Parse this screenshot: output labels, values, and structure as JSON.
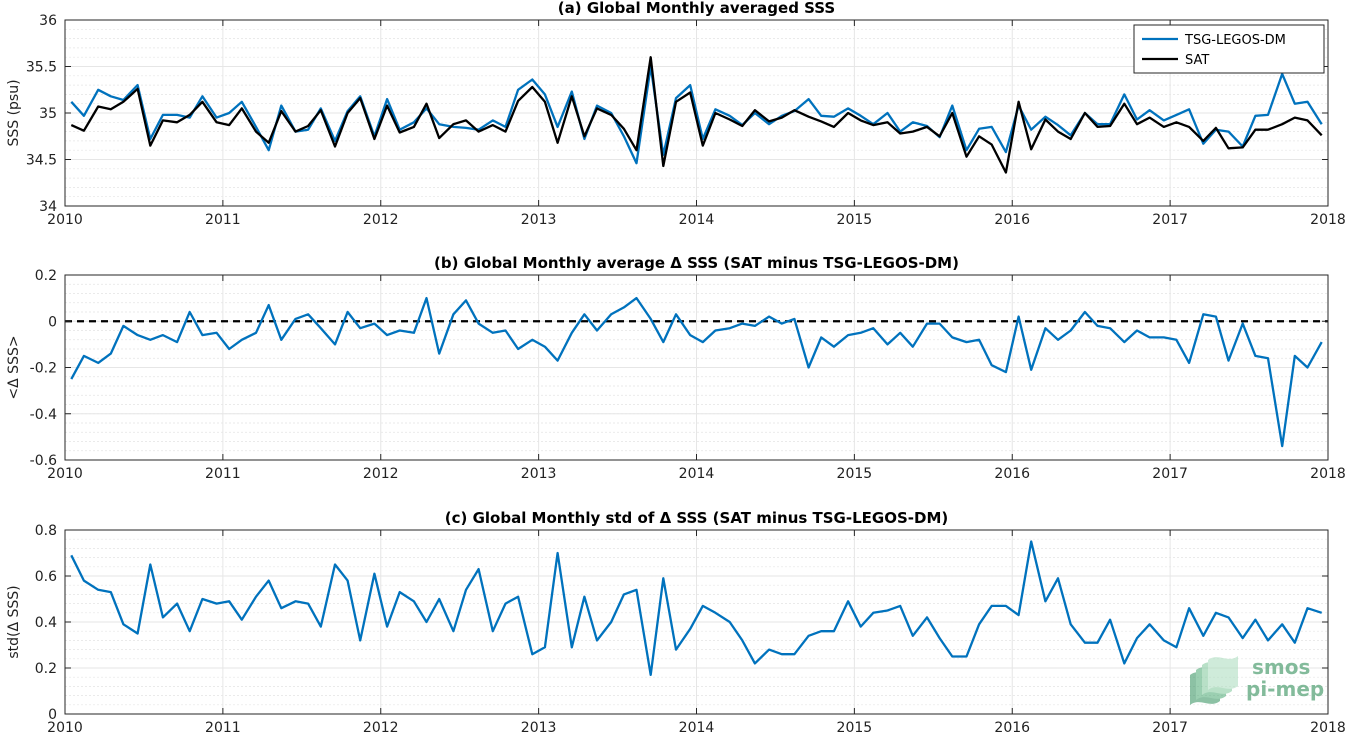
{
  "colors": {
    "tsg": "#0072BD",
    "sat": "#000000",
    "grid": "#e6e6e6",
    "axis": "#262626"
  },
  "logo": {
    "line1": "smos",
    "line2": "pi-mep",
    "icon": "smos-pimep-logo-icon"
  },
  "chart_data": [
    {
      "type": "line",
      "title": "(a) Global Monthly averaged SSS",
      "xlabel": "",
      "ylabel": "SSS (psu)",
      "xlim": [
        2010,
        2018
      ],
      "ylim": [
        34,
        36
      ],
      "xticks": [
        "2010",
        "2011",
        "2012",
        "2013",
        "2014",
        "2015",
        "2016",
        "2017",
        "2018"
      ],
      "yticks": [
        "34",
        "34.5",
        "35",
        "35.5",
        "36"
      ],
      "ytick_values": [
        34,
        34.5,
        35,
        35.5,
        36
      ],
      "grid": true,
      "legend": "top-right",
      "x": [
        2010.04,
        2010.12,
        2010.21,
        2010.29,
        2010.37,
        2010.46,
        2010.54,
        2010.62,
        2010.71,
        2010.79,
        2010.87,
        2010.96,
        2011.04,
        2011.12,
        2011.21,
        2011.29,
        2011.37,
        2011.46,
        2011.54,
        2011.62,
        2011.71,
        2011.79,
        2011.87,
        2011.96,
        2012.04,
        2012.12,
        2012.21,
        2012.29,
        2012.37,
        2012.46,
        2012.54,
        2012.62,
        2012.71,
        2012.79,
        2012.87,
        2012.96,
        2013.04,
        2013.12,
        2013.21,
        2013.29,
        2013.37,
        2013.46,
        2013.54,
        2013.62,
        2013.71,
        2013.79,
        2013.87,
        2013.96,
        2014.04,
        2014.12,
        2014.21,
        2014.29,
        2014.37,
        2014.46,
        2014.54,
        2014.62,
        2014.71,
        2014.79,
        2014.87,
        2014.96,
        2015.04,
        2015.12,
        2015.21,
        2015.29,
        2015.37,
        2015.46,
        2015.54,
        2015.62,
        2015.71,
        2015.79,
        2015.87,
        2015.96,
        2016.04,
        2016.12,
        2016.21,
        2016.29,
        2016.37,
        2016.46,
        2016.54,
        2016.62,
        2016.71,
        2016.79,
        2016.87,
        2016.96,
        2017.04,
        2017.12,
        2017.21,
        2017.29,
        2017.37,
        2017.46,
        2017.54,
        2017.62,
        2017.71,
        2017.79,
        2017.87,
        2017.96
      ],
      "series": [
        {
          "name": "TSG-LEGOS-DM",
          "color": "#0072BD",
          "values": [
            35.12,
            34.97,
            35.25,
            35.18,
            35.14,
            35.3,
            34.72,
            34.98,
            34.98,
            34.95,
            35.18,
            34.95,
            35.0,
            35.12,
            34.85,
            34.6,
            35.08,
            34.8,
            34.82,
            35.05,
            34.7,
            35.02,
            35.18,
            34.75,
            35.15,
            34.82,
            34.9,
            35.05,
            34.88,
            34.85,
            34.84,
            34.82,
            34.92,
            34.85,
            35.25,
            35.36,
            35.2,
            34.85,
            35.23,
            34.72,
            35.08,
            35.0,
            34.75,
            34.46,
            35.5,
            34.55,
            35.16,
            35.3,
            34.72,
            35.04,
            34.97,
            34.87,
            35.0,
            34.88,
            34.97,
            35.02,
            35.15,
            34.97,
            34.96,
            35.05,
            34.97,
            34.88,
            35.0,
            34.8,
            34.9,
            34.86,
            34.74,
            35.08,
            34.6,
            34.83,
            34.85,
            34.58,
            35.08,
            34.82,
            34.96,
            34.87,
            34.76,
            35.0,
            34.88,
            34.88,
            35.2,
            34.93,
            35.03,
            34.92,
            34.98,
            35.04,
            34.67,
            34.82,
            34.8,
            34.64,
            34.97,
            34.98,
            35.42,
            35.1,
            35.12,
            34.88
          ]
        },
        {
          "name": "SAT",
          "color": "#000000",
          "values": [
            34.87,
            34.81,
            35.07,
            35.04,
            35.12,
            35.26,
            34.65,
            34.92,
            34.9,
            34.98,
            35.12,
            34.9,
            34.87,
            35.05,
            34.8,
            34.68,
            35.02,
            34.8,
            34.86,
            35.03,
            34.64,
            35.0,
            35.16,
            34.72,
            35.08,
            34.79,
            34.85,
            35.1,
            34.73,
            34.88,
            34.92,
            34.8,
            34.87,
            34.8,
            35.13,
            35.28,
            35.12,
            34.68,
            35.18,
            34.75,
            35.05,
            34.98,
            34.83,
            34.6,
            35.6,
            34.43,
            35.12,
            35.22,
            34.65,
            35.0,
            34.93,
            34.86,
            35.03,
            34.91,
            34.95,
            35.03,
            34.96,
            34.91,
            34.85,
            35.0,
            34.92,
            34.87,
            34.9,
            34.78,
            34.8,
            34.85,
            34.75,
            35.0,
            34.53,
            34.75,
            34.66,
            34.36,
            35.12,
            34.61,
            34.93,
            34.8,
            34.72,
            35.0,
            34.85,
            34.86,
            35.1,
            34.88,
            34.95,
            34.85,
            34.9,
            34.85,
            34.7,
            34.84,
            34.62,
            34.63,
            34.82,
            34.82,
            34.88,
            34.95,
            34.92,
            34.76
          ]
        }
      ]
    },
    {
      "type": "line",
      "title": "(b) Global Monthly average Δ SSS (SAT minus TSG-LEGOS-DM)",
      "xlabel": "",
      "ylabel": "<Δ SSS>",
      "xlim": [
        2010,
        2018
      ],
      "ylim": [
        -0.6,
        0.2
      ],
      "xticks": [
        "2010",
        "2011",
        "2012",
        "2013",
        "2014",
        "2015",
        "2016",
        "2017",
        "2018"
      ],
      "yticks": [
        "-0.6",
        "-0.4",
        "-0.2",
        "0",
        "0.2"
      ],
      "ytick_values": [
        -0.6,
        -0.4,
        -0.2,
        0,
        0.2
      ],
      "grid": true,
      "reference_line": 0,
      "x": [
        2010.04,
        2010.12,
        2010.21,
        2010.29,
        2010.37,
        2010.46,
        2010.54,
        2010.62,
        2010.71,
        2010.79,
        2010.87,
        2010.96,
        2011.04,
        2011.12,
        2011.21,
        2011.29,
        2011.37,
        2011.46,
        2011.54,
        2011.62,
        2011.71,
        2011.79,
        2011.87,
        2011.96,
        2012.04,
        2012.12,
        2012.21,
        2012.29,
        2012.37,
        2012.46,
        2012.54,
        2012.62,
        2012.71,
        2012.79,
        2012.87,
        2012.96,
        2013.04,
        2013.12,
        2013.21,
        2013.29,
        2013.37,
        2013.46,
        2013.54,
        2013.62,
        2013.71,
        2013.79,
        2013.87,
        2013.96,
        2014.04,
        2014.12,
        2014.21,
        2014.29,
        2014.37,
        2014.46,
        2014.54,
        2014.62,
        2014.71,
        2014.79,
        2014.87,
        2014.96,
        2015.04,
        2015.12,
        2015.21,
        2015.29,
        2015.37,
        2015.46,
        2015.54,
        2015.62,
        2015.71,
        2015.79,
        2015.87,
        2015.96,
        2016.04,
        2016.12,
        2016.21,
        2016.29,
        2016.37,
        2016.46,
        2016.54,
        2016.62,
        2016.71,
        2016.79,
        2016.87,
        2016.96,
        2017.04,
        2017.12,
        2017.21,
        2017.29,
        2017.37,
        2017.46,
        2017.54,
        2017.62,
        2017.71,
        2017.79,
        2017.87,
        2017.96
      ],
      "series": [
        {
          "name": "",
          "color": "#0072BD",
          "values": [
            -0.25,
            -0.15,
            -0.18,
            -0.14,
            -0.02,
            -0.06,
            -0.08,
            -0.06,
            -0.09,
            0.04,
            -0.06,
            -0.05,
            -0.12,
            -0.08,
            -0.05,
            0.07,
            -0.08,
            0.01,
            0.03,
            -0.03,
            -0.1,
            0.04,
            -0.03,
            -0.01,
            -0.06,
            -0.04,
            -0.05,
            0.1,
            -0.14,
            0.03,
            0.09,
            -0.01,
            -0.05,
            -0.04,
            -0.12,
            -0.08,
            -0.11,
            -0.17,
            -0.05,
            0.03,
            -0.04,
            0.03,
            0.06,
            0.1,
            0.01,
            -0.09,
            0.03,
            -0.06,
            -0.09,
            -0.04,
            -0.03,
            -0.01,
            -0.02,
            0.02,
            -0.01,
            0.01,
            -0.2,
            -0.07,
            -0.11,
            -0.06,
            -0.05,
            -0.03,
            -0.1,
            -0.05,
            -0.11,
            -0.01,
            -0.01,
            -0.07,
            -0.09,
            -0.08,
            -0.19,
            -0.22,
            0.02,
            -0.21,
            -0.03,
            -0.08,
            -0.04,
            0.04,
            -0.02,
            -0.03,
            -0.09,
            -0.04,
            -0.07,
            -0.07,
            -0.08,
            -0.18,
            0.03,
            0.02,
            -0.17,
            -0.01,
            -0.15,
            -0.16,
            -0.54,
            -0.15,
            -0.2,
            -0.09
          ]
        }
      ]
    },
    {
      "type": "line",
      "title": "(c) Global Monthly std of Δ SSS (SAT minus TSG-LEGOS-DM)",
      "xlabel": "",
      "ylabel": "std(Δ SSS)",
      "xlim": [
        2010,
        2018
      ],
      "ylim": [
        0,
        0.8
      ],
      "xticks": [
        "2010",
        "2011",
        "2012",
        "2013",
        "2014",
        "2015",
        "2016",
        "2017",
        "2018"
      ],
      "yticks": [
        "0",
        "0.2",
        "0.4",
        "0.6",
        "0.8"
      ],
      "ytick_values": [
        0,
        0.2,
        0.4,
        0.6,
        0.8
      ],
      "grid": true,
      "x": [
        2010.04,
        2010.12,
        2010.21,
        2010.29,
        2010.37,
        2010.46,
        2010.54,
        2010.62,
        2010.71,
        2010.79,
        2010.87,
        2010.96,
        2011.04,
        2011.12,
        2011.21,
        2011.29,
        2011.37,
        2011.46,
        2011.54,
        2011.62,
        2011.71,
        2011.79,
        2011.87,
        2011.96,
        2012.04,
        2012.12,
        2012.21,
        2012.29,
        2012.37,
        2012.46,
        2012.54,
        2012.62,
        2012.71,
        2012.79,
        2012.87,
        2012.96,
        2013.04,
        2013.12,
        2013.21,
        2013.29,
        2013.37,
        2013.46,
        2013.54,
        2013.62,
        2013.71,
        2013.79,
        2013.87,
        2013.96,
        2014.04,
        2014.12,
        2014.21,
        2014.29,
        2014.37,
        2014.46,
        2014.54,
        2014.62,
        2014.71,
        2014.79,
        2014.87,
        2014.96,
        2015.04,
        2015.12,
        2015.21,
        2015.29,
        2015.37,
        2015.46,
        2015.54,
        2015.62,
        2015.71,
        2015.79,
        2015.87,
        2015.96,
        2016.04,
        2016.12,
        2016.21,
        2016.29,
        2016.37,
        2016.46,
        2016.54,
        2016.62,
        2016.71,
        2016.79,
        2016.87,
        2016.96,
        2017.04,
        2017.12,
        2017.21,
        2017.29,
        2017.37,
        2017.46,
        2017.54,
        2017.62,
        2017.71,
        2017.79,
        2017.87,
        2017.96
      ],
      "series": [
        {
          "name": "",
          "color": "#0072BD",
          "values": [
            0.69,
            0.58,
            0.54,
            0.53,
            0.39,
            0.35,
            0.65,
            0.42,
            0.48,
            0.36,
            0.5,
            0.48,
            0.49,
            0.41,
            0.51,
            0.58,
            0.46,
            0.49,
            0.48,
            0.38,
            0.65,
            0.58,
            0.32,
            0.61,
            0.38,
            0.53,
            0.49,
            0.4,
            0.5,
            0.36,
            0.54,
            0.63,
            0.36,
            0.48,
            0.51,
            0.26,
            0.29,
            0.7,
            0.29,
            0.51,
            0.32,
            0.4,
            0.52,
            0.54,
            0.17,
            0.59,
            0.28,
            0.37,
            0.47,
            0.44,
            0.4,
            0.32,
            0.22,
            0.28,
            0.26,
            0.26,
            0.34,
            0.36,
            0.36,
            0.49,
            0.38,
            0.44,
            0.45,
            0.47,
            0.34,
            0.42,
            0.33,
            0.25,
            0.25,
            0.39,
            0.47,
            0.47,
            0.43,
            0.75,
            0.49,
            0.59,
            0.39,
            0.31,
            0.31,
            0.41,
            0.22,
            0.33,
            0.39,
            0.32,
            0.29,
            0.46,
            0.34,
            0.44,
            0.42,
            0.33,
            0.41,
            0.32,
            0.39,
            0.31,
            0.46,
            0.44
          ]
        }
      ]
    }
  ]
}
